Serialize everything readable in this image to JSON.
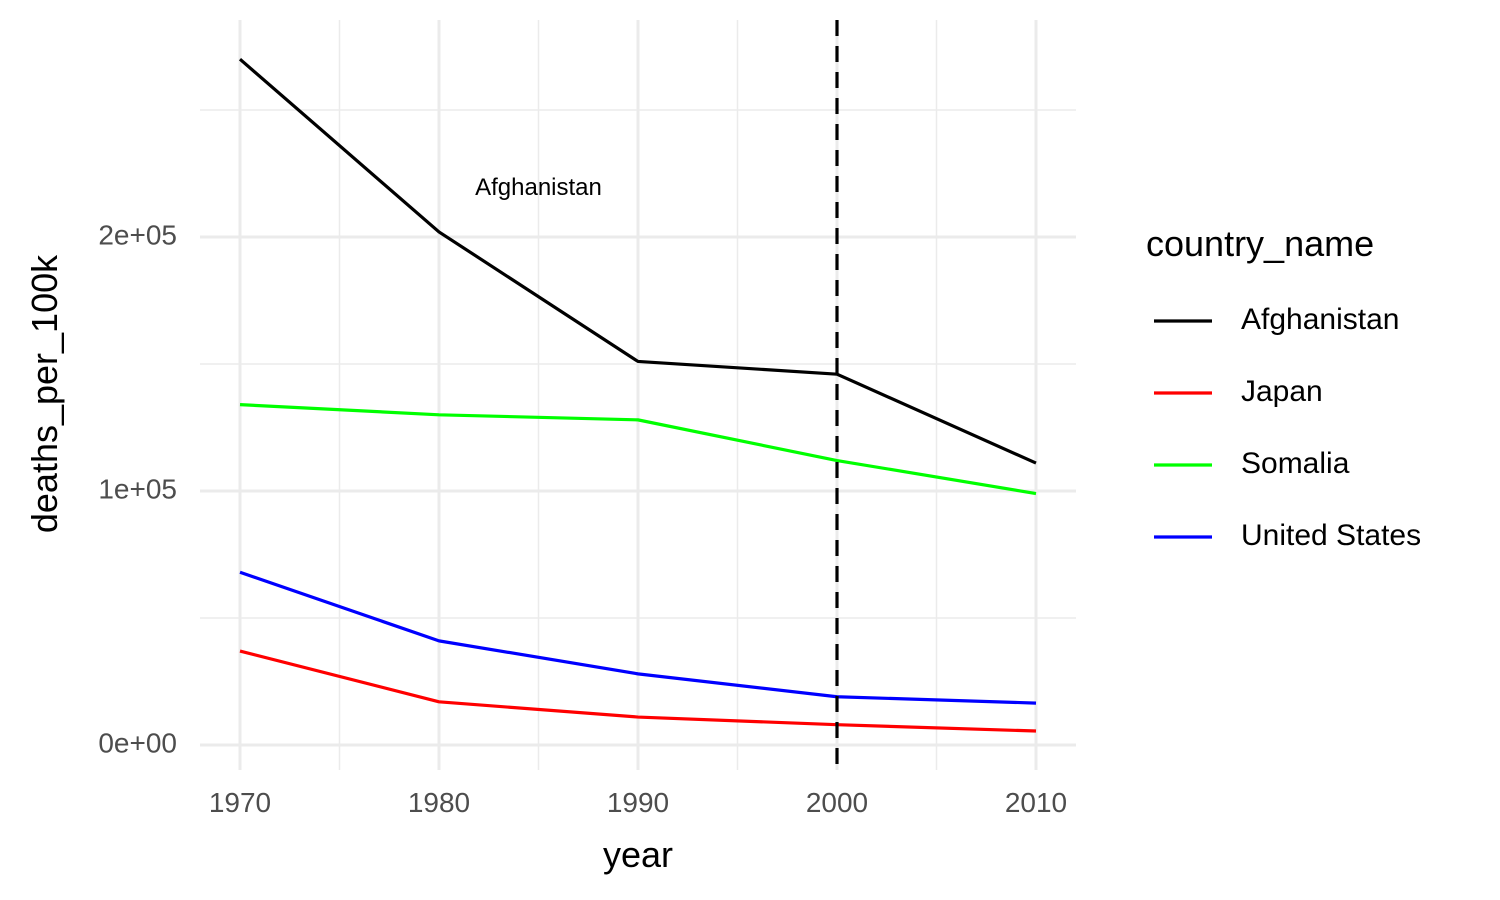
{
  "chart_data": {
    "type": "line",
    "xlabel": "year",
    "ylabel": "deaths_per_100k",
    "x": [
      1970,
      1980,
      1990,
      2000,
      2010
    ],
    "xlim": [
      1968,
      2012
    ],
    "ylim": [
      -6000,
      282000
    ],
    "x_ticks": [
      1970,
      1980,
      1990,
      2000,
      2010
    ],
    "x_tick_labels": [
      "1970",
      "1980",
      "1990",
      "2000",
      "2010"
    ],
    "x_minor_ticks": [
      1975,
      1985,
      1995,
      2005
    ],
    "y_ticks": [
      0,
      100000,
      200000
    ],
    "y_tick_labels": [
      "0e+00",
      "1e+05",
      "2e+05"
    ],
    "y_minor_ticks": [
      50000,
      150000,
      250000
    ],
    "grid": true,
    "legend": {
      "title": "country_name",
      "position": "right"
    },
    "series": [
      {
        "name": "Afghanistan",
        "color": "#000000",
        "values": [
          270000,
          202000,
          151000,
          146000,
          111000
        ]
      },
      {
        "name": "Japan",
        "color": "#ff0000",
        "values": [
          37000,
          17000,
          11000,
          8000,
          5500
        ]
      },
      {
        "name": "Somalia",
        "color": "#00ff00",
        "values": [
          134000,
          130000,
          128000,
          112000,
          99000
        ]
      },
      {
        "name": "United States",
        "color": "#0000ff",
        "values": [
          68000,
          41000,
          28000,
          19000,
          16500
        ]
      }
    ],
    "reference_line": {
      "x": 2000,
      "style": "dashed",
      "color": "#000000"
    },
    "annotations": [
      {
        "text": "Afghanistan",
        "x": 1985,
        "y": 219000
      }
    ]
  }
}
